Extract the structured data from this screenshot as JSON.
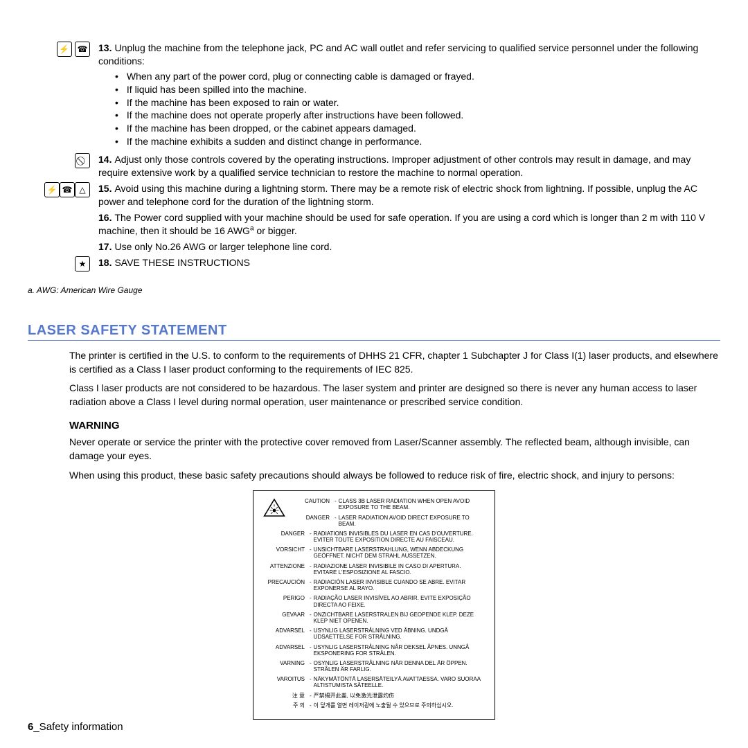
{
  "items": [
    {
      "icons": [
        "plug-icon",
        "phone-cord-icon"
      ],
      "num": "13.",
      "text": "Unplug the machine from the telephone jack, PC and AC wall outlet and refer servicing to qualified service personnel under the following conditions:",
      "bullets": [
        "When any part of the power cord, plug or connecting cable is damaged or frayed.",
        "If liquid has been spilled into the machine.",
        "If the machine has been exposed to rain or water.",
        "If the machine does not operate properly after instructions have been followed.",
        "If the machine has been dropped, or the cabinet appears damaged.",
        "If the machine exhibits a sudden and distinct change in performance."
      ]
    },
    {
      "icons": [
        "prohibit-icon"
      ],
      "num": "14.",
      "text": "Adjust only those controls covered by the operating instructions. Improper adjustment of other controls may result in damage, and may require extensive work by a qualified service technician to restore the machine to normal operation."
    },
    {
      "icons": [
        "plug-icon",
        "phone-cord-icon",
        "warning-icon"
      ],
      "num": "15.",
      "text": "Avoid using this machine during a lightning storm. There may be a remote risk of electric shock from lightning. If possible, unplug the AC power and telephone cord for the duration of the lightning storm."
    },
    {
      "icons": [],
      "num": "16.",
      "text_html": "The Power cord supplied with your machine should be used for safe operation. If you are using a cord which is longer than 2 m with 110 V machine, then it should be 16 AWG<sup>a</sup> or bigger."
    },
    {
      "icons": [],
      "num": "17.",
      "text": "Use only No.26 AWG or larger telephone line cord."
    },
    {
      "icons": [
        "star-icon"
      ],
      "num": "18.",
      "text": "SAVE THESE INSTRUCTIONS"
    }
  ],
  "footnote": "a. AWG: American Wire Gauge",
  "section": {
    "title": "LASER SAFETY STATEMENT",
    "title_color": "#5577cc",
    "p1": "The printer is certified in the U.S. to conform to the requirements of DHHS 21 CFR, chapter 1 Subchapter J for Class I(1) laser products, and elsewhere is certified as a Class I laser product conforming to the requirements of IEC 825.",
    "p2": "Class I laser products are not considered to be hazardous. The laser system and printer are designed so there is never any human access to laser radiation above a Class I level during normal operation, user maintenance or prescribed service condition.",
    "warning_heading": "WARNING",
    "w1": "Never operate or service the printer with the protective cover removed from Laser/Scanner assembly. The reflected beam, although invisible, can damage your eyes.",
    "w2": "When using this product, these basic safety precautions should always be followed to reduce risk of fire, electric shock, and injury to persons:"
  },
  "label_rows": [
    {
      "lang": "CAUTION",
      "text": "CLASS 3B LASER RADIATION WHEN OPEN AVOID EXPOSURE TO THE BEAM."
    },
    {
      "lang": "DANGER",
      "text": "LASER RADIATION AVOID DIRECT EXPOSURE TO BEAM."
    },
    {
      "lang": "DANGER",
      "text": "RADIATIONS INVISIBLES DU LASER EN CAS D'OUVERTURE. EVITER TOUTE EXPOSITION DIRECTE AU FAISCEAU."
    },
    {
      "lang": "VORSICHT",
      "text": "UNSICHTBARE LASERSTRAHLUNG, WENN ABDECKUNG GEÖFFNET. NICHT DEM STRAHL AUSSETZEN."
    },
    {
      "lang": "ATTENZIONE",
      "text": "RADIAZIONE LASER INVISIBILE IN CASO DI APERTURA. EVITARE L'ESPOSIZIONE AL FASCIO."
    },
    {
      "lang": "PRECAUCIÓN",
      "text": "RADIACIÓN LASER INVISIBLE CUANDO SE ABRE. EVITAR EXPONERSE AL RAYO."
    },
    {
      "lang": "PERIGO",
      "text": "RADIAÇÃO LASER INVISÍVEL AO ABRIR. EVITE EXPOSIÇÃO DIRECTA AO FEIXE."
    },
    {
      "lang": "GEVAAR",
      "text": "ONZICHTBARE LASERSTRALEN BIJ GEOPENDE KLEP. DEZE KLEP NIET OPENEN."
    },
    {
      "lang": "ADVARSEL",
      "text": "USYNLIG LASERSTRÅLNING VED ÅBNING. UNDGÅ UDSAETTELSE FOR STRÅLNING."
    },
    {
      "lang": "ADVARSEL",
      "text": "USYNLIG LASERSTRÅLNING NÅR DEKSEL ÅPNES. UNNGÅ EKSPONERING FOR STRÅLEN."
    },
    {
      "lang": "VARNING",
      "text": "OSYNLIG LASERSTRÅLNING NÄR DENNA DEL ÄR ÖPPEN. STRÅLEN ÄR FARLIG."
    },
    {
      "lang": "VAROITUS",
      "text": "NÄKYMÄTÖNTÄ LASERSÄTEILYÄ AVATTAESSA. VARO SUORAA ALTISTUMISTA SÄTEELLE."
    },
    {
      "lang": "注        意",
      "text": "严禁揭开此盖, 以免激光泄露灼伤"
    },
    {
      "lang": "주        의",
      "text": "이 덮개를 열면 레이저광에 노출될 수 있으므로 주의하십시오."
    }
  ],
  "footer": {
    "num": "6",
    "text": "_Safety information"
  }
}
